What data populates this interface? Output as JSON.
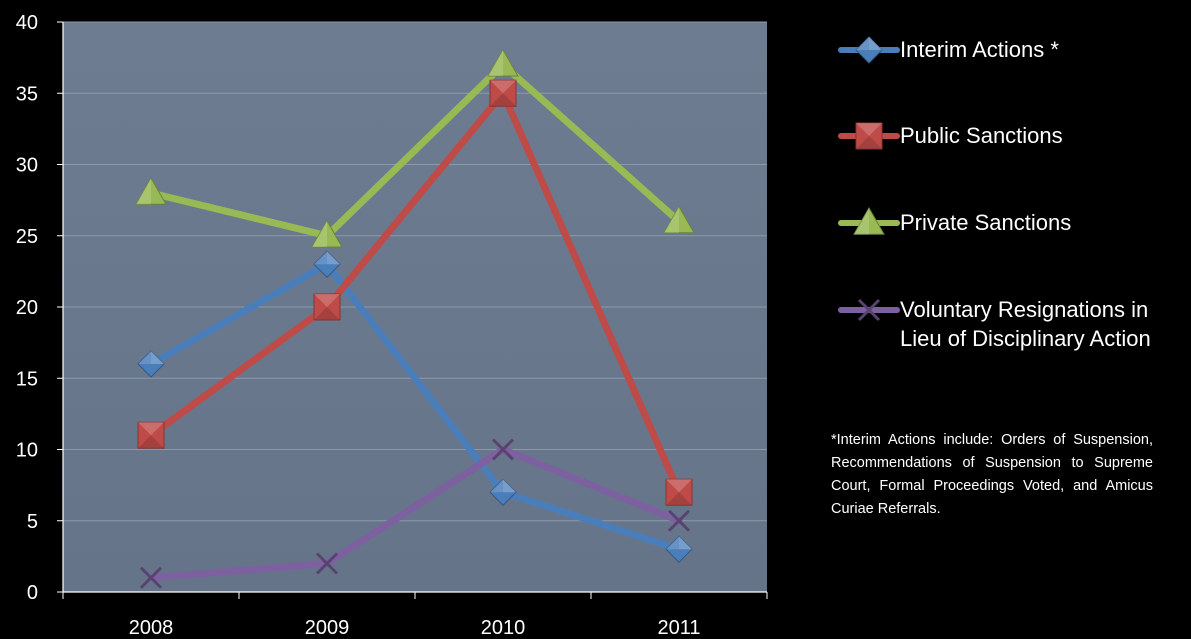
{
  "chart_data": {
    "type": "line",
    "title": "",
    "xlabel": "",
    "ylabel": "",
    "categories": [
      "2008",
      "2009",
      "2010",
      "2011"
    ],
    "ylim": [
      0,
      40
    ],
    "yticks": [
      "0",
      "5",
      "10",
      "15",
      "20",
      "25",
      "30",
      "35",
      "40"
    ],
    "grid": true,
    "legend_position": "right",
    "plot_background": "#6b7a8f",
    "series": [
      {
        "name": "Interim Actions *",
        "values": [
          16,
          23,
          7,
          3
        ],
        "color": "#4a7ebb",
        "marker": "diamond"
      },
      {
        "name": "Public Sanctions",
        "values": [
          11,
          20,
          35,
          7
        ],
        "color": "#be4b48",
        "marker": "square"
      },
      {
        "name": "Private Sanctions",
        "values": [
          28,
          25,
          37,
          26
        ],
        "color": "#98b954",
        "marker": "triangle"
      },
      {
        "name": "Voluntary Resignations in Lieu of Disciplinary Action",
        "values": [
          1,
          2,
          10,
          5
        ],
        "color": "#7d60a0",
        "marker": "x"
      }
    ]
  },
  "footnote": "*Interim Actions include: Orders of Suspension, Recommendations of Suspension to Supreme Court, Formal Proceedings Voted, and Amicus Curiae Referrals."
}
